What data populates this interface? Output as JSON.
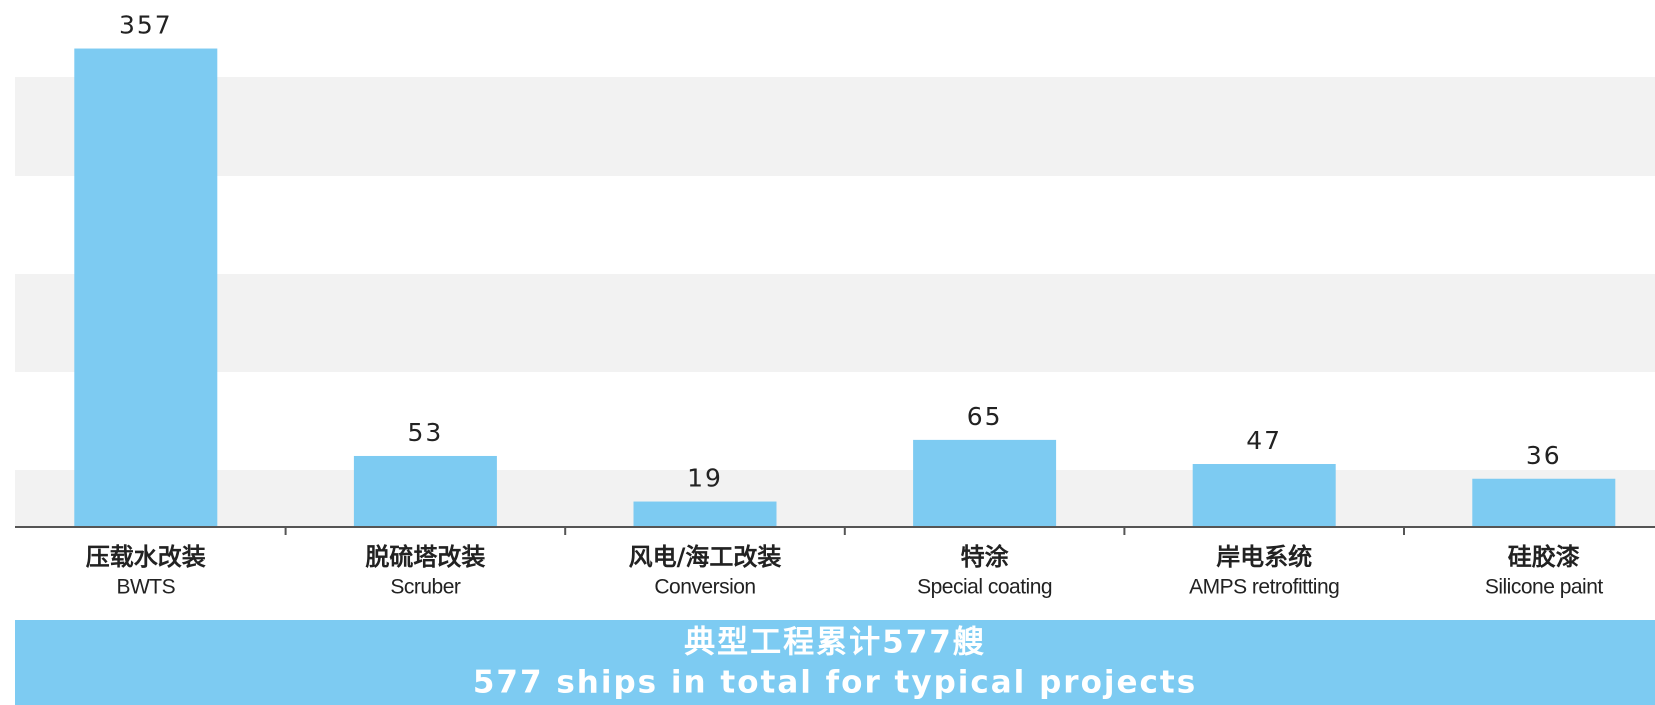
{
  "chart_data": {
    "type": "bar",
    "categories": [
      "压载水改装",
      "脱硫塔改装",
      "风电/海工改装",
      "特涂",
      "岸电系统",
      "硅胶漆"
    ],
    "category_subtitles": [
      "BWTS",
      "Scruber",
      "Conversion",
      "Special coating",
      "AMPS retrofitting",
      "Silicone paint"
    ],
    "values": [
      357,
      53,
      19,
      65,
      47,
      36
    ],
    "color": "#7dcbf2",
    "ylim": [
      0,
      390
    ],
    "footer_title": "典型工程累计577艘",
    "footer_subtitle": "577 ships in total for typical projects"
  }
}
